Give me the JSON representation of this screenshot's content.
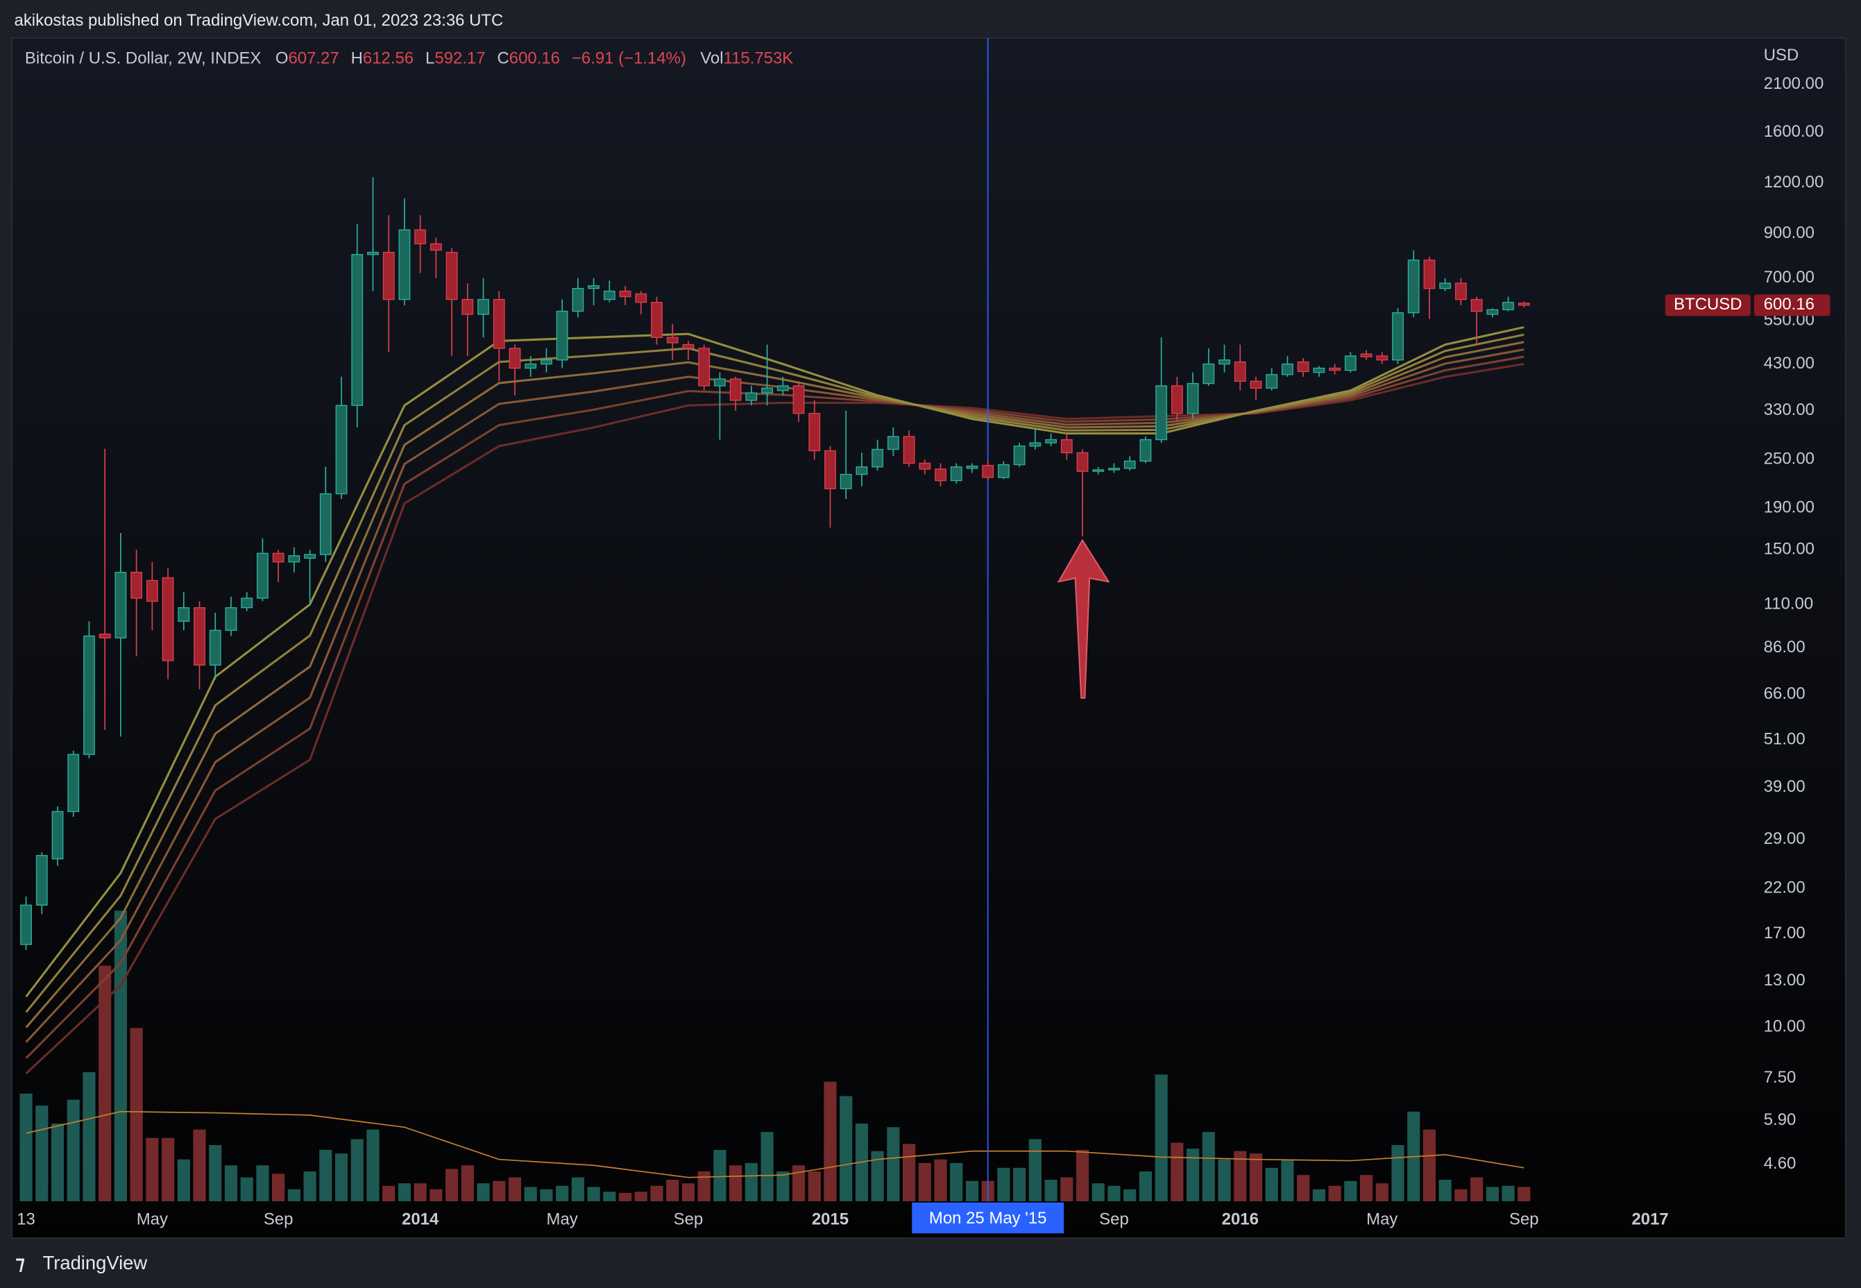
{
  "header": {
    "published": "akikostas published on TradingView.com, Jan 01, 2023 23:36 UTC"
  },
  "footer": {
    "brand": "TradingView"
  },
  "chart_data": {
    "type": "candlestick",
    "title": "Bitcoin / U.S. Dollar, 2W, INDEX",
    "legend_keys": [
      "O",
      "H",
      "L",
      "C"
    ],
    "change_label": "−6.91 (−1.14%)",
    "volume_legend": {
      "key": "Vol",
      "label": "115.753K"
    },
    "y_axis_label": "USD",
    "log_scale": true,
    "grid": false,
    "ylim": [
      3.73,
      2730
    ],
    "yticks": [
      {
        "value": 2100,
        "label": "2100.00"
      },
      {
        "value": 1600,
        "label": "1600.00"
      },
      {
        "value": 1200,
        "label": "1200.00"
      },
      {
        "value": 900,
        "label": "900.00"
      },
      {
        "value": 700,
        "label": "700.00"
      },
      {
        "value": 550,
        "label": "550.00"
      },
      {
        "value": 430,
        "label": "430.00"
      },
      {
        "value": 330,
        "label": "330.00"
      },
      {
        "value": 250,
        "label": "250.00"
      },
      {
        "value": 190,
        "label": "190.00"
      },
      {
        "value": 150,
        "label": "150.00"
      },
      {
        "value": 110,
        "label": "110.00"
      },
      {
        "value": 86,
        "label": "86.00"
      },
      {
        "value": 66,
        "label": "66.00"
      },
      {
        "value": 51,
        "label": "51.00"
      },
      {
        "value": 39,
        "label": "39.00"
      },
      {
        "value": 29,
        "label": "29.00"
      },
      {
        "value": 22,
        "label": "22.00"
      },
      {
        "value": 17,
        "label": "17.00"
      },
      {
        "value": 13,
        "label": "13.00"
      },
      {
        "value": 10,
        "label": "10.00"
      },
      {
        "value": 7.5,
        "label": "7.50"
      },
      {
        "value": 5.9,
        "label": "5.90"
      },
      {
        "value": 4.6,
        "label": "4.60"
      }
    ],
    "xlim": [
      -0.9,
      109.6
    ],
    "xticks": [
      {
        "value": 0,
        "label": "13"
      },
      {
        "value": 8,
        "label": "May"
      },
      {
        "value": 16,
        "label": "Sep"
      },
      {
        "value": 25,
        "label": "2014"
      },
      {
        "value": 34,
        "label": "May"
      },
      {
        "value": 42,
        "label": "Sep"
      },
      {
        "value": 51,
        "label": "2015"
      },
      {
        "value": 69,
        "label": "Sep"
      },
      {
        "value": 77,
        "label": "2016"
      },
      {
        "value": 86,
        "label": "May"
      },
      {
        "value": 95,
        "label": "Sep"
      },
      {
        "value": 103,
        "label": "2017"
      }
    ],
    "up_color": "#2bb09c",
    "down_color": "#d8404e",
    "candles": {
      "open": [
        16,
        20,
        26,
        34,
        47,
        93,
        91,
        132,
        126,
        128,
        100,
        108,
        78,
        95,
        108,
        114,
        147,
        140,
        143,
        146,
        206,
        340,
        800,
        810,
        620,
        920,
        850,
        810,
        620,
        570,
        620,
        470,
        420,
        430,
        440,
        580,
        660,
        620,
        650,
        640,
        610,
        500,
        480,
        470,
        380,
        395,
        350,
        365,
        370,
        380,
        325,
        263,
        212,
        230,
        240,
        265,
        285,
        245,
        237,
        222,
        238,
        242,
        226,
        243,
        270,
        275,
        280,
        260,
        234,
        236,
        238,
        248,
        280,
        380,
        325,
        385,
        430,
        435,
        390,
        375,
        405,
        435,
        410,
        420,
        415,
        455,
        450,
        440,
        575,
        775,
        660,
        680,
        620,
        570,
        585,
        607.27
      ],
      "high": [
        21,
        27,
        35,
        48,
        100,
        266,
        165,
        150,
        140,
        135,
        118,
        112,
        105,
        115,
        118,
        160,
        150,
        152,
        150,
        240,
        400,
        950,
        1240,
        1000,
        1100,
        1000,
        880,
        830,
        680,
        700,
        650,
        480,
        450,
        470,
        620,
        700,
        700,
        690,
        670,
        650,
        630,
        540,
        490,
        480,
        410,
        400,
        380,
        480,
        400,
        390,
        350,
        270,
        330,
        260,
        280,
        300,
        295,
        250,
        245,
        245,
        245,
        250,
        248,
        275,
        300,
        290,
        290,
        265,
        240,
        245,
        255,
        285,
        500,
        400,
        410,
        470,
        480,
        480,
        400,
        420,
        450,
        445,
        425,
        430,
        460,
        465,
        460,
        590,
        820,
        790,
        700,
        700,
        630,
        590,
        630,
        612.56
      ],
      "low": [
        15.5,
        19,
        25,
        33,
        46,
        54,
        52,
        82,
        95,
        72,
        95,
        68,
        72,
        92,
        106,
        112,
        125,
        132,
        110,
        140,
        200,
        300,
        650,
        460,
        600,
        720,
        700,
        450,
        450,
        500,
        390,
        360,
        400,
        410,
        420,
        560,
        600,
        610,
        600,
        570,
        480,
        440,
        440,
        370,
        280,
        330,
        340,
        340,
        360,
        310,
        250,
        170,
        200,
        215,
        235,
        255,
        240,
        230,
        215,
        218,
        232,
        222,
        224,
        240,
        265,
        270,
        250,
        162,
        230,
        232,
        235,
        245,
        275,
        310,
        315,
        380,
        410,
        370,
        350,
        370,
        400,
        400,
        400,
        405,
        410,
        440,
        430,
        430,
        560,
        555,
        650,
        600,
        480,
        560,
        580,
        592.17
      ],
      "close": [
        20,
        26.5,
        34,
        47,
        92,
        91,
        132,
        114,
        112,
        80,
        108,
        78,
        95,
        108,
        114,
        147,
        140,
        145,
        146,
        206,
        340,
        800,
        810,
        620,
        920,
        850,
        820,
        620,
        570,
        620,
        470,
        420,
        430,
        440,
        580,
        660,
        670,
        650,
        630,
        610,
        500,
        485,
        470,
        380,
        395,
        350,
        365,
        375,
        380,
        325,
        263,
        212,
        230,
        240,
        265,
        285,
        245,
        237,
        222,
        240,
        241,
        226,
        243,
        270,
        275,
        280,
        260,
        234,
        236,
        238,
        248,
        280,
        380,
        325,
        385,
        430,
        440,
        390,
        375,
        405,
        430,
        412,
        420,
        415,
        450,
        448,
        440,
        575,
        775,
        660,
        680,
        620,
        580,
        585,
        610,
        600.16
      ]
    },
    "volume": {
      "ylim": [
        0,
        2500
      ],
      "up_color": "#1d5a53",
      "down_color": "#742a2b",
      "values": [
        869,
        772,
        627,
        820,
        1042,
        1901,
        2345,
        1399,
        511,
        511,
        338,
        579,
        454,
        290,
        193,
        290,
        222,
        97,
        241,
        415,
        386,
        502,
        579,
        125,
        145,
        145,
        97,
        261,
        290,
        145,
        164,
        193,
        116,
        97,
        125,
        193,
        116,
        77,
        68,
        77,
        125,
        174,
        145,
        241,
        415,
        290,
        309,
        560,
        241,
        290,
        241,
        965,
        849,
        627,
        405,
        598,
        463,
        309,
        338,
        309,
        164,
        164,
        270,
        270,
        502,
        174,
        193,
        415,
        145,
        125,
        97,
        241,
        1023,
        473,
        425,
        560,
        338,
        405,
        386,
        270,
        338,
        212,
        97,
        125,
        164,
        212,
        145,
        454,
        724,
        579,
        174,
        97,
        193,
        116,
        125,
        115.753
      ]
    },
    "volume_ma": {
      "color": "#c77f2c",
      "x": [
        0,
        6,
        12,
        18,
        24,
        30,
        36,
        42,
        48,
        54,
        60,
        66,
        72,
        78,
        84,
        90,
        95
      ],
      "values": [
        550,
        724,
        714,
        695,
        598,
        338,
        290,
        193,
        212,
        338,
        405,
        405,
        357,
        338,
        328,
        376,
        270
      ]
    },
    "ribbon": {
      "x": [
        0,
        6,
        12,
        18,
        24,
        30,
        36,
        42,
        48,
        54,
        60,
        66,
        72,
        78,
        84,
        90,
        95
      ],
      "series": [
        {
          "color": "#958f3f",
          "values": [
            11.9,
            24,
            73,
            110,
            340,
            490,
            500,
            510,
            430,
            360,
            315,
            290,
            290,
            330,
            370,
            480,
            530
          ]
        },
        {
          "color": "#92803c",
          "values": [
            10.9,
            21.1,
            62.1,
            92.2,
            304,
            435,
            451,
            470,
            412,
            357,
            319,
            295,
            296,
            329,
            366,
            463,
            508
          ]
        },
        {
          "color": "#8e6c39",
          "values": [
            10.0,
            18.6,
            52.9,
            77.3,
            272,
            386,
            408,
            434,
            394,
            354,
            323,
            300,
            302,
            328,
            362,
            447,
            487
          ]
        },
        {
          "color": "#885735",
          "values": [
            9.2,
            16.4,
            45.0,
            64.8,
            244,
            343,
            368,
            400,
            377,
            351,
            327,
            305,
            308,
            327,
            358,
            431,
            467
          ]
        },
        {
          "color": "#7c4030",
          "values": [
            8.4,
            14.4,
            38.3,
            54.4,
            218,
            304,
            332,
            369,
            361,
            348,
            331,
            310,
            314,
            326,
            354,
            415,
            448
          ]
        },
        {
          "color": "#6c2c29",
          "values": [
            7.7,
            12.7,
            32.6,
            45.6,
            195,
            270,
            300,
            340,
            345,
            345,
            335,
            315,
            320,
            325,
            350,
            400,
            430
          ]
        }
      ]
    },
    "price_label": {
      "name": "BTCUSD",
      "color": "#8b1a22"
    },
    "crosshair": {
      "x": 61,
      "label": "Mon 25 May '15",
      "color": "#2962ff"
    }
  }
}
